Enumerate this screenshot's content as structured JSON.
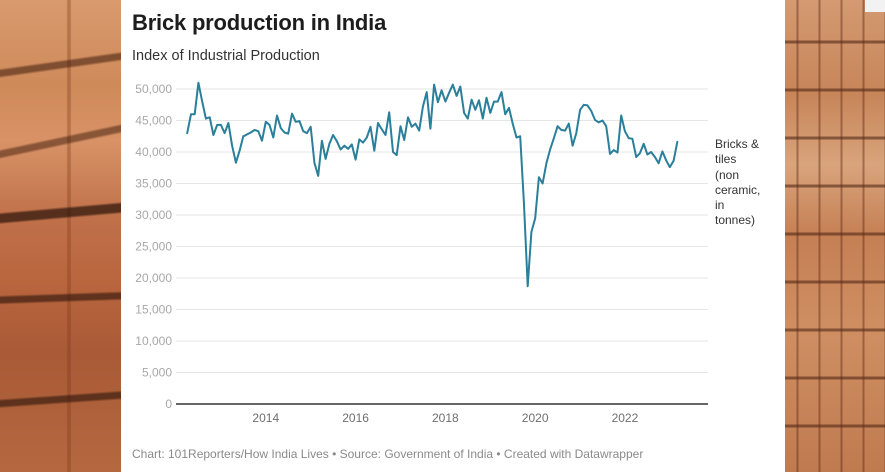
{
  "background": {
    "description": "Photograph of stacked clay bricks framing the chart on left and right"
  },
  "header": {
    "title": "Brick production in India",
    "subtitle": "Index of Industrial Production"
  },
  "footer": {
    "text": "Chart: 101Reporters/How India Lives • Source: Government of India • Created with Datawrapper"
  },
  "colors": {
    "line": "#2a7f9a",
    "grid": "#e6e6e6",
    "axis": "#333333",
    "panel": "#ffffff"
  },
  "chart_data": {
    "type": "line",
    "title": "Brick production in India",
    "subtitle": "Index of Industrial Production",
    "xlabel": "",
    "ylabel": "",
    "x_start": "2012-04",
    "x_end": "2023-08",
    "frequency": "monthly",
    "xlim": [
      2012.0,
      2023.85
    ],
    "ylim": [
      0,
      50000
    ],
    "y_ticks": [
      0,
      5000,
      10000,
      15000,
      20000,
      25000,
      30000,
      35000,
      40000,
      45000,
      50000
    ],
    "y_tick_labels": [
      "0",
      "5,000",
      "10,000",
      "15,000",
      "20,000",
      "25,000",
      "30,000",
      "35,000",
      "40,000",
      "45,000",
      "50,000"
    ],
    "x_ticks": [
      2014,
      2016,
      2018,
      2020,
      2022
    ],
    "x_tick_labels": [
      "2014",
      "2016",
      "2018",
      "2020",
      "2022"
    ],
    "grid": true,
    "legend_position": "right-end-of-line",
    "series": [
      {
        "name": "Bricks & tiles (non ceramic, in tonnes)",
        "values": [
          43000,
          46000,
          46000,
          51000,
          48000,
          45300,
          45500,
          42700,
          44300,
          44300,
          43000,
          44600,
          41000,
          38300,
          40200,
          42500,
          42800,
          43100,
          43500,
          43300,
          41800,
          44800,
          44300,
          42300,
          45800,
          43800,
          43100,
          42900,
          46100,
          44800,
          44900,
          43300,
          43000,
          44000,
          38300,
          36200,
          41800,
          38900,
          41300,
          42700,
          41700,
          40400,
          41000,
          40500,
          41200,
          38800,
          42000,
          41500,
          42300,
          44000,
          40200,
          44600,
          43600,
          42700,
          46300,
          40000,
          39500,
          44100,
          41900,
          45500,
          44000,
          44500,
          43400,
          47200,
          49500,
          43700,
          50700,
          47900,
          49800,
          48000,
          49400,
          50700,
          48900,
          50400,
          46200,
          45300,
          48300,
          46700,
          48200,
          45300,
          48600,
          46200,
          48000,
          48000,
          49500,
          46000,
          47000,
          44500,
          42300,
          42500,
          32000,
          18700,
          27300,
          29500,
          36000,
          35000,
          38200,
          40400,
          42200,
          44100,
          43500,
          43400,
          44500,
          41000,
          43000,
          46700,
          47500,
          47400,
          46500,
          45100,
          44700,
          45000,
          44100,
          39700,
          40300,
          39900,
          45800,
          43300,
          42200,
          42100,
          39200,
          39800,
          41300,
          39600,
          40000,
          39200,
          38200,
          40100,
          38700,
          37600,
          38600,
          41600
        ]
      }
    ]
  },
  "legend": {
    "label_lines": [
      "Bricks &",
      "tiles",
      "(non",
      "ceramic,",
      "in",
      "tonnes)"
    ]
  }
}
